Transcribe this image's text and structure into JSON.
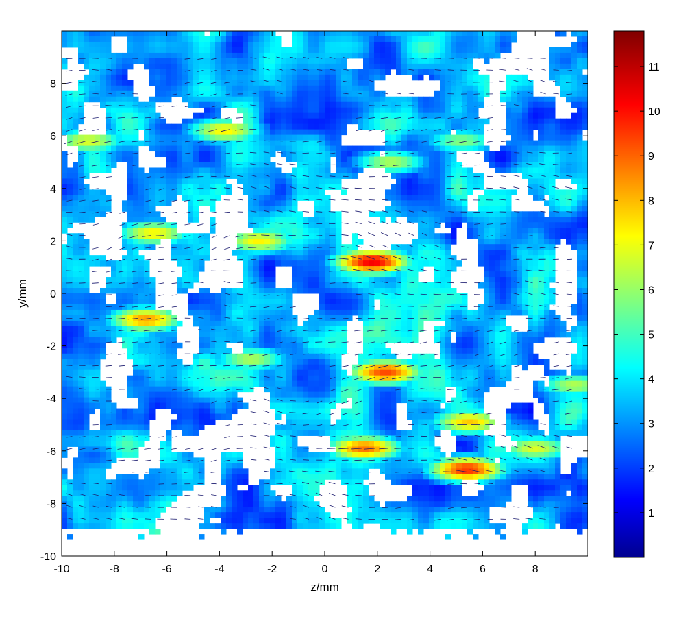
{
  "chart_data": {
    "type": "heatmap",
    "xlabel": "z/mm",
    "ylabel": "y/mm",
    "xlim": [
      -10,
      10
    ],
    "ylim": [
      -10,
      10
    ],
    "xticks": [
      "-10",
      "-8",
      "-6",
      "-4",
      "-2",
      "0",
      "2",
      "4",
      "6",
      "8"
    ],
    "xtick_values": [
      -10,
      -8,
      -6,
      -4,
      -2,
      0,
      2,
      4,
      6,
      8
    ],
    "yticks": [
      "-10",
      "-8",
      "-6",
      "-4",
      "-2",
      "0",
      "2",
      "4",
      "6",
      "8"
    ],
    "ytick_values": [
      -10,
      -8,
      -6,
      -4,
      -2,
      0,
      2,
      4,
      6,
      8
    ],
    "colorbar": {
      "colormap": "jet",
      "range": [
        0,
        11.8
      ],
      "ticks": [
        "1",
        "2",
        "3",
        "4",
        "5",
        "6",
        "7",
        "8",
        "9",
        "10",
        "11"
      ],
      "tick_values": [
        1,
        2,
        3,
        4,
        5,
        6,
        7,
        8,
        9,
        10,
        11
      ]
    },
    "overlay": "velocity vectors (quiver arrows)",
    "hotspots": [
      {
        "z": 1.8,
        "y": 1.2,
        "value": 10.5
      },
      {
        "z": 2.3,
        "y": -3.0,
        "value": 9.5
      },
      {
        "z": 5.4,
        "y": -6.7,
        "value": 9.8
      },
      {
        "z": 1.5,
        "y": -5.9,
        "value": 9.0
      },
      {
        "z": -6.8,
        "y": -1.0,
        "value": 8.5
      },
      {
        "z": -3.8,
        "y": 6.2,
        "value": 7.5
      },
      {
        "z": -9.0,
        "y": 5.8,
        "value": 7.0
      },
      {
        "z": -6.5,
        "y": 2.3,
        "value": 7.5
      },
      {
        "z": -2.5,
        "y": 2.0,
        "value": 7.5
      },
      {
        "z": 2.5,
        "y": 5.0,
        "value": 6.5
      },
      {
        "z": 5.5,
        "y": -4.9,
        "value": 8.0
      },
      {
        "z": 8.0,
        "y": -5.9,
        "value": 7.0
      },
      {
        "z": 9.5,
        "y": -3.5,
        "value": 6.5
      },
      {
        "z": -2.8,
        "y": -2.5,
        "value": 6.5
      },
      {
        "z": 5.2,
        "y": 5.8,
        "value": 6.0
      }
    ],
    "grid": false
  }
}
